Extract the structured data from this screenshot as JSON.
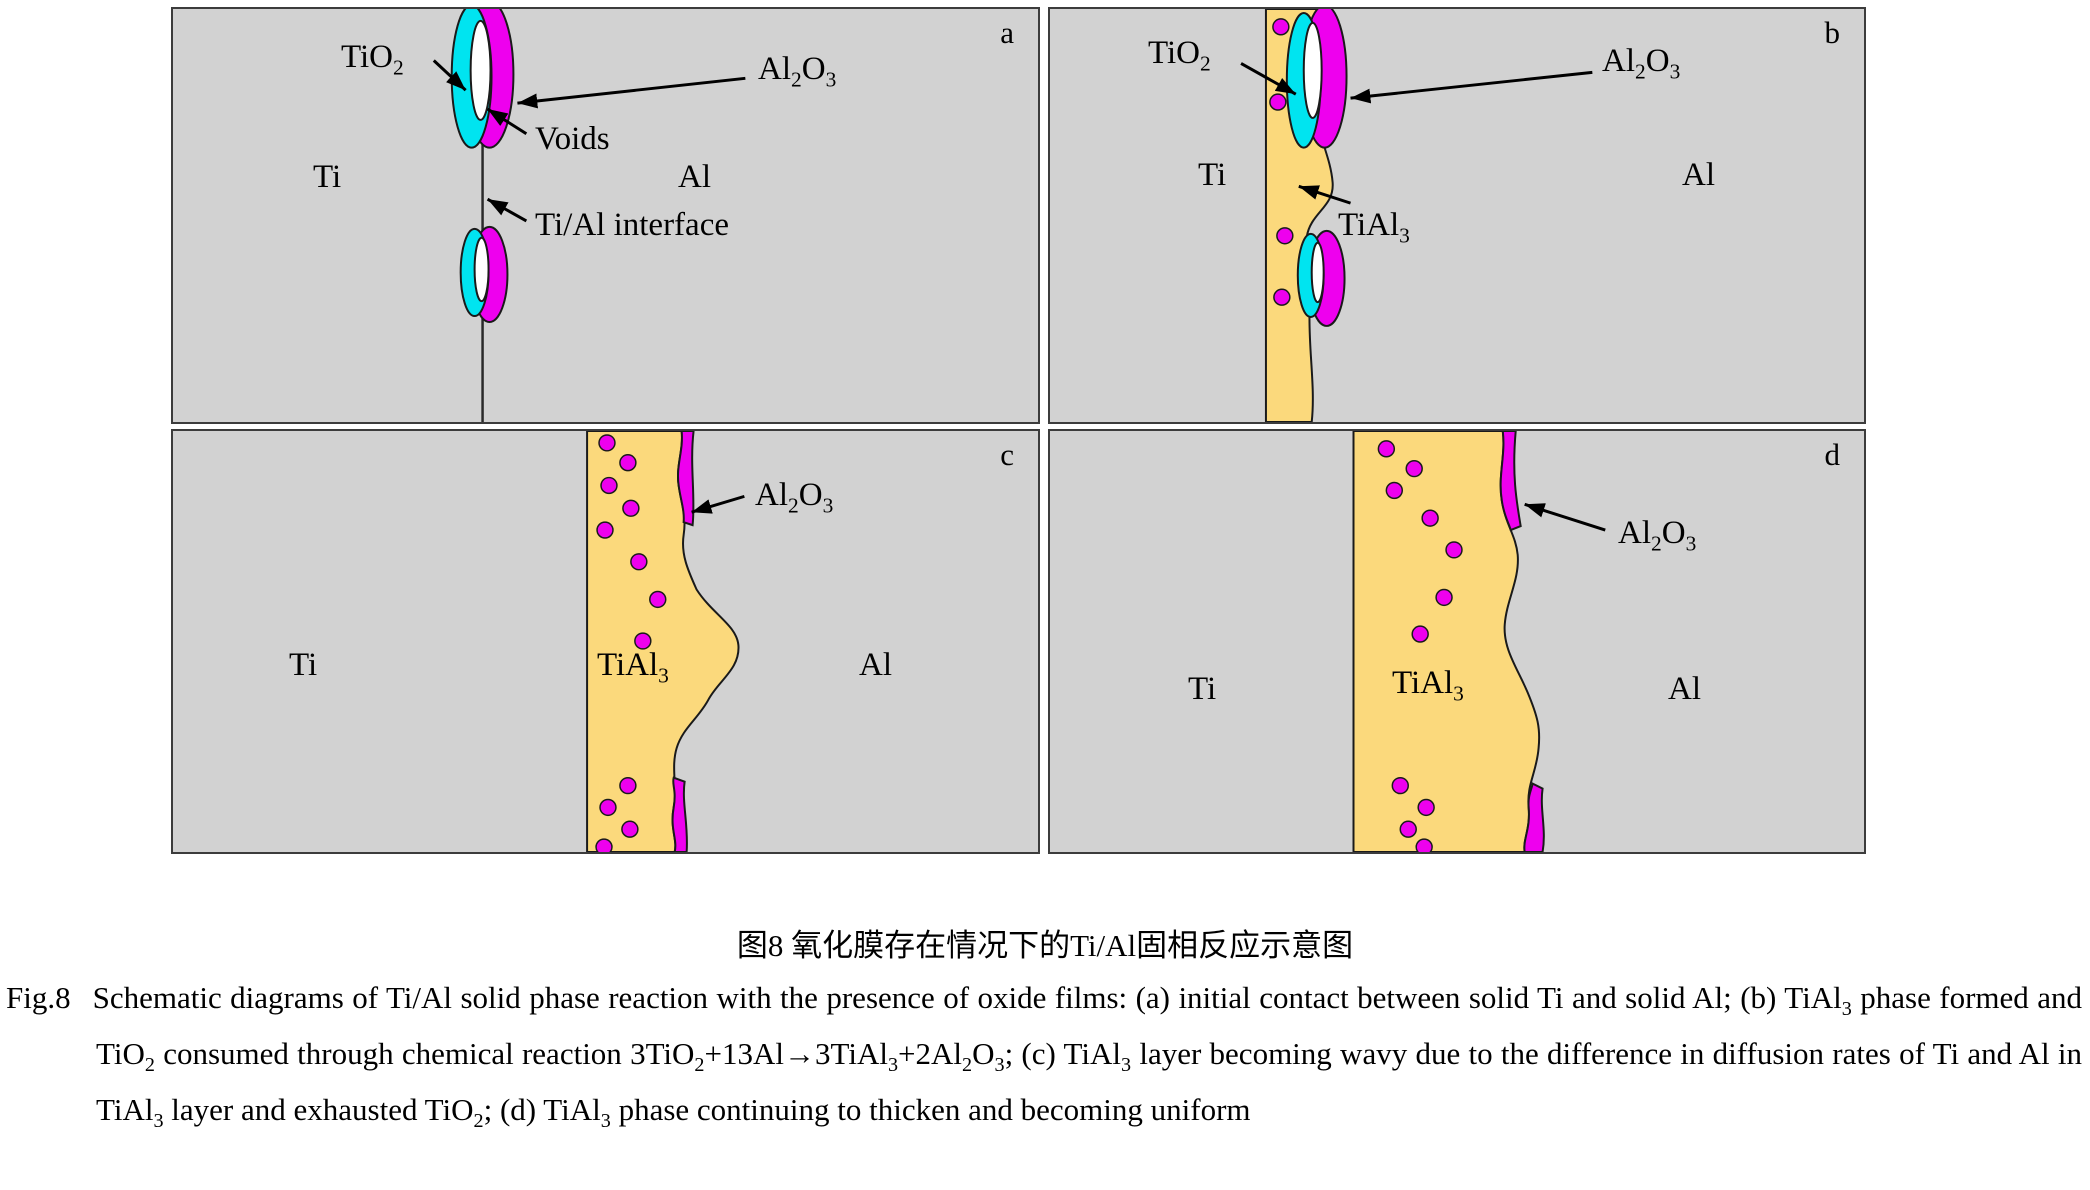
{
  "figure": {
    "panels": [
      {
        "id": "a",
        "letter": "a"
      },
      {
        "id": "b",
        "letter": "b"
      },
      {
        "id": "c",
        "letter": "c"
      },
      {
        "id": "d",
        "letter": "d"
      }
    ],
    "labels": {
      "ti": "Ti",
      "al": "Al",
      "voids": "Voids",
      "interface": "Ti/Al interface",
      "tio2": [
        {
          "t": "TiO"
        },
        {
          "t": "2",
          "sub": true
        }
      ],
      "al2o3": [
        {
          "t": "Al"
        },
        {
          "t": "2",
          "sub": true
        },
        {
          "t": "O"
        },
        {
          "t": "3",
          "sub": true
        }
      ],
      "tial3": [
        {
          "t": "TiAl"
        },
        {
          "t": "3",
          "sub": true
        }
      ]
    },
    "colors": {
      "panel_bg": "#d2d2d2",
      "panel_border": "#3c3c3c",
      "tio2_cyan": "#00e4f0",
      "al2o3_magenta": "#ee00ee",
      "tial3_yellow": "#fbd97c",
      "void_white": "#ffffff",
      "outline": "#1a1a1a"
    }
  },
  "caption": {
    "chinese": "图8  氧化膜存在情况下的Ti/Al固相反应示意图",
    "fig_label": "Fig.8",
    "english": [
      {
        "t": "Schematic diagrams of Ti/Al solid phase reaction with the presence of oxide films: (a) initial contact between solid Ti and solid Al; (b) TiAl"
      },
      {
        "t": "3",
        "sub": true
      },
      {
        "t": " phase formed and TiO"
      },
      {
        "t": "2",
        "sub": true
      },
      {
        "t": " consumed through chemical reaction 3TiO"
      },
      {
        "t": "2",
        "sub": true
      },
      {
        "t": "+13Al→3TiAl"
      },
      {
        "t": "3",
        "sub": true
      },
      {
        "t": "+2Al"
      },
      {
        "t": "2",
        "sub": true
      },
      {
        "t": "O"
      },
      {
        "t": "3",
        "sub": true
      },
      {
        "t": "; (c) TiAl"
      },
      {
        "t": "3",
        "sub": true
      },
      {
        "t": " layer becoming wavy due to the difference in diffusion rates of Ti and Al in TiAl"
      },
      {
        "t": "3",
        "sub": true
      },
      {
        "t": " layer and exhausted TiO"
      },
      {
        "t": "2",
        "sub": true
      },
      {
        "t": "; (d) TiAl"
      },
      {
        "t": "3",
        "sub": true
      },
      {
        "t": " phase continuing to thicken and becoming uniform"
      }
    ]
  }
}
